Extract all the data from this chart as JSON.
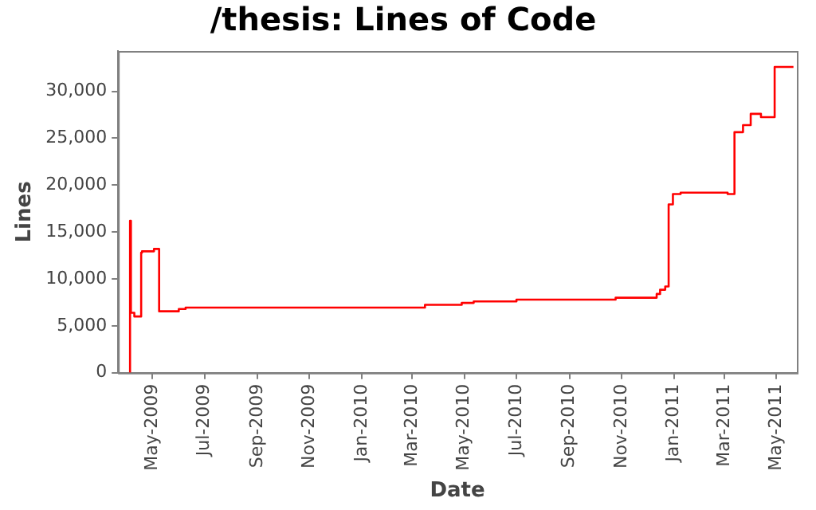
{
  "chart_data": {
    "type": "step",
    "title": "/thesis: Lines of Code",
    "xlabel": "Date",
    "ylabel": "Lines",
    "x": [
      "2009-04-05",
      "2009-04-06",
      "2009-04-10",
      "2009-04-18",
      "2009-04-19",
      "2009-05-03",
      "2009-05-09",
      "2009-06-01",
      "2009-06-09",
      "2010-03-16",
      "2010-04-28",
      "2010-05-12",
      "2010-07-01",
      "2010-10-25",
      "2010-12-12",
      "2010-12-16",
      "2010-12-22",
      "2010-12-26",
      "2010-12-31",
      "2011-01-09",
      "2011-03-05",
      "2011-03-13",
      "2011-03-23",
      "2011-04-01",
      "2011-04-13",
      "2011-04-29",
      "2011-05-04",
      "2011-05-21"
    ],
    "series": [
      {
        "color": "#ff0000",
        "values": [
          0,
          16200,
          6400,
          6000,
          12800,
          12950,
          13200,
          6550,
          6800,
          6950,
          7250,
          7450,
          7600,
          7800,
          8000,
          8400,
          8850,
          9200,
          17950,
          19050,
          19200,
          19050,
          25650,
          26400,
          27600,
          27250,
          32600,
          32600
        ]
      }
    ],
    "xlim": [
      "2009-03-22",
      "2011-05-25"
    ],
    "xticks": [
      {
        "value": "2009-05",
        "label": "May-2009"
      },
      {
        "value": "2009-07",
        "label": "Jul-2009"
      },
      {
        "value": "2009-09",
        "label": "Sep-2009"
      },
      {
        "value": "2009-11",
        "label": "Nov-2009"
      },
      {
        "value": "2010-01",
        "label": "Jan-2010"
      },
      {
        "value": "2010-03",
        "label": "Mar-2010"
      },
      {
        "value": "2010-05",
        "label": "May-2010"
      },
      {
        "value": "2010-07",
        "label": "Jul-2010"
      },
      {
        "value": "2010-09",
        "label": "Sep-2010"
      },
      {
        "value": "2010-11",
        "label": "Nov-2010"
      },
      {
        "value": "2011-01",
        "label": "Jan-2011"
      },
      {
        "value": "2011-03",
        "label": "Mar-2011"
      },
      {
        "value": "2011-05",
        "label": "May-2011"
      }
    ],
    "ylim": [
      0,
      34300
    ],
    "yticks": [
      0,
      {
        "value": 5000,
        "label": "5,000"
      },
      {
        "value": 10000,
        "label": "10,000"
      },
      {
        "value": 15000,
        "label": "15,000"
      },
      {
        "value": 20000,
        "label": "20,000"
      },
      {
        "value": 25000,
        "label": "25,000"
      },
      {
        "value": 30000,
        "label": "30,000"
      }
    ],
    "grid": false,
    "legend": false,
    "marker": "none",
    "line_style": "solid"
  }
}
